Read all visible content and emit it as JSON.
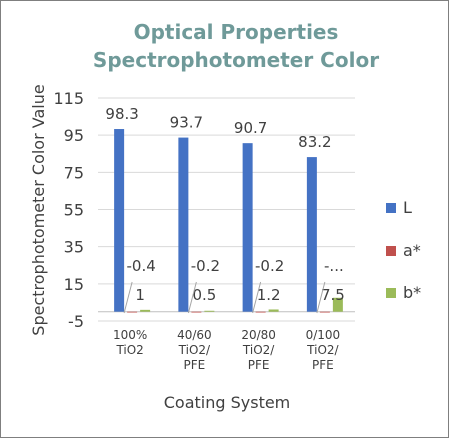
{
  "chart_data": {
    "type": "bar",
    "title": [
      "Optical Properties",
      "Spectrophotometer Color"
    ],
    "xlabel": "Coating System",
    "ylabel": "Spectrophotometer Color Value",
    "ylim": [
      -5,
      115
    ],
    "yticks": [
      -5,
      15,
      35,
      55,
      75,
      95,
      115
    ],
    "categories": [
      [
        "100%",
        "TiO2"
      ],
      [
        "40/60",
        "TiO2/",
        "PFE"
      ],
      [
        "20/80",
        "TiO2/",
        "PFE"
      ],
      [
        "0/100",
        "TiO2/",
        "PFE"
      ]
    ],
    "series": [
      {
        "name": "L",
        "color": "#4472c4",
        "values": [
          98.3,
          93.7,
          90.7,
          83.2
        ],
        "labels": [
          "98.3",
          "93.7",
          "90.7",
          "83.2"
        ]
      },
      {
        "name": "a*",
        "color": "#c0504d",
        "values": [
          -0.4,
          -0.2,
          -0.2,
          -0.3
        ],
        "labels": [
          "-0.4",
          "-0.2",
          "-0.2",
          "-..."
        ]
      },
      {
        "name": "b*",
        "color": "#9bbb59",
        "values": [
          1,
          0.5,
          1.2,
          7.5
        ],
        "labels": [
          "1",
          "0.5",
          "1.2",
          "7.5"
        ]
      }
    ],
    "grid": true,
    "legend_position": "right"
  }
}
